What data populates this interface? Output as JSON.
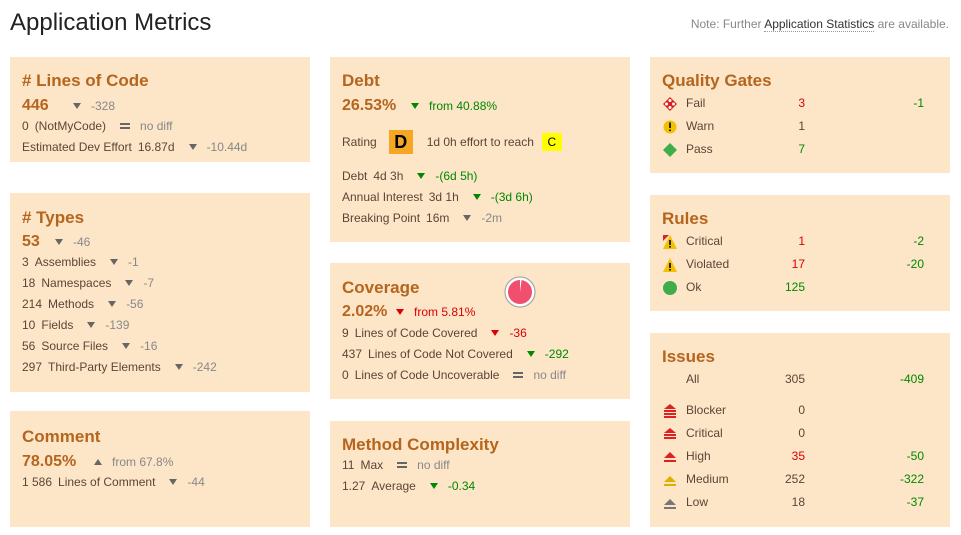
{
  "header": {
    "title": "Application Metrics",
    "note_prefix": "Note: Further",
    "note_link": "Application Statistics",
    "note_suffix": "are available."
  },
  "loc": {
    "title": "# Lines of Code",
    "value": "446",
    "diff": "-328",
    "notmycode_value": "0",
    "notmycode_label": "(NotMyCode)",
    "notmycode_diff": "no diff",
    "effort_label": "Estimated Dev Effort",
    "effort_value": "16.87d",
    "effort_diff": "-10.44d"
  },
  "types": {
    "title": "# Types",
    "value": "53",
    "diff": "-46",
    "rows": [
      {
        "value": "3",
        "label": "Assemblies",
        "diff": "-1"
      },
      {
        "value": "18",
        "label": "Namespaces",
        "diff": "-7"
      },
      {
        "value": "214",
        "label": "Methods",
        "diff": "-56"
      },
      {
        "value": "10",
        "label": "Fields",
        "diff": "-139"
      },
      {
        "value": "56",
        "label": "Source Files",
        "diff": "-16"
      },
      {
        "value": "297",
        "label": "Third-Party Elements",
        "diff": "-242"
      }
    ]
  },
  "comment": {
    "title": "Comment",
    "value": "78.05%",
    "from": "from 67.8%",
    "lines_value": "1 586",
    "lines_label": "Lines of Comment",
    "lines_diff": "-44"
  },
  "debt": {
    "title": "Debt",
    "value": "26.53%",
    "from": "from 40.88%",
    "rating_label": "Rating",
    "rating_grade": "D",
    "effort_text": "1d 0h effort to reach",
    "target_grade": "C",
    "debt_label": "Debt",
    "debt_value": "4d 3h",
    "debt_diff": "-(6d 5h)",
    "interest_label": "Annual Interest",
    "interest_value": "3d 1h",
    "interest_diff": "-(3d 6h)",
    "breaking_label": "Breaking Point",
    "breaking_value": "16m",
    "breaking_diff": "-2m"
  },
  "coverage": {
    "title": "Coverage",
    "value": "2.02%",
    "from": "from 5.81%",
    "pie_fraction": 0.0202,
    "covered_value": "9",
    "covered_label": "Lines of Code Covered",
    "covered_diff": "-36",
    "notcovered_value": "437",
    "notcovered_label": "Lines of Code Not Covered",
    "notcovered_diff": "-292",
    "uncoverable_value": "0",
    "uncoverable_label": "Lines of Code Uncoverable",
    "uncoverable_diff": "no diff"
  },
  "complexity": {
    "title": "Method Complexity",
    "max_value": "11",
    "max_label": "Max",
    "max_diff": "no diff",
    "avg_value": "1.27",
    "avg_label": "Average",
    "avg_diff": "-0.34"
  },
  "quality_gates": {
    "title": "Quality Gates",
    "rows": [
      {
        "label": "Fail",
        "value": "3",
        "diff": "-1"
      },
      {
        "label": "Warn",
        "value": "1",
        "diff": ""
      },
      {
        "label": "Pass",
        "value": "7",
        "diff": ""
      }
    ]
  },
  "rules": {
    "title": "Rules",
    "rows": [
      {
        "label": "Critical",
        "value": "1",
        "diff": "-2"
      },
      {
        "label": "Violated",
        "value": "17",
        "diff": "-20"
      },
      {
        "label": "Ok",
        "value": "125",
        "diff": ""
      }
    ]
  },
  "issues": {
    "title": "Issues",
    "all_label": "All",
    "all_value": "305",
    "all_diff": "-409",
    "rows": [
      {
        "label": "Blocker",
        "value": "0",
        "diff": ""
      },
      {
        "label": "Critical",
        "value": "0",
        "diff": ""
      },
      {
        "label": "High",
        "value": "35",
        "diff": "-50"
      },
      {
        "label": "Medium",
        "value": "252",
        "diff": "-322"
      },
      {
        "label": "Low",
        "value": "18",
        "diff": "-37"
      }
    ]
  },
  "colors": {
    "card_bg": "#fde5c8",
    "accent": "#b5651d",
    "negative": "#dd0000",
    "positive": "#008800"
  }
}
